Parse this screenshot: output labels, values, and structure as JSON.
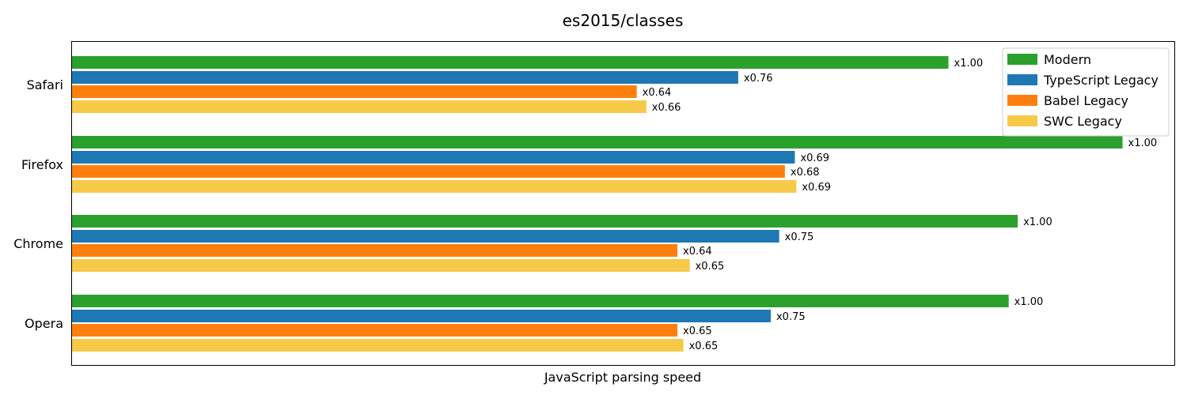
{
  "chart_data": {
    "type": "bar",
    "orientation": "horizontal",
    "title": "es2015/classes",
    "xlabel": "JavaScript parsing speed",
    "ylabel": "",
    "categories": [
      "Safari",
      "Firefox",
      "Chrome",
      "Opera"
    ],
    "series": [
      {
        "name": "Modern",
        "color": "#2ca02c",
        "values": [
          2910,
          3488,
          3140,
          3110
        ],
        "labels": [
          "x1.00",
          "x1.00",
          "x1.00",
          "x1.00"
        ]
      },
      {
        "name": "TypeScript Legacy",
        "color": "#1f77b4",
        "values": [
          2212,
          2400,
          2348,
          2320
        ],
        "labels": [
          "x0.76",
          "x0.69",
          "x0.75",
          "x0.75"
        ]
      },
      {
        "name": "Babel Legacy",
        "color": "#ff7f0e",
        "values": [
          1875,
          2367,
          2010,
          2010
        ],
        "labels": [
          "x0.64",
          "x0.68",
          "x0.64",
          "x0.65"
        ]
      },
      {
        "name": "SWC Legacy",
        "color": "#f7c948",
        "values": [
          1907,
          2405,
          2051,
          2030
        ],
        "labels": [
          "x0.66",
          "x0.69",
          "x0.65",
          "x0.65"
        ]
      }
    ],
    "xlim": [
      0,
      3660
    ],
    "x_ticks_shown": false,
    "grid": false,
    "legend": "top-right"
  }
}
